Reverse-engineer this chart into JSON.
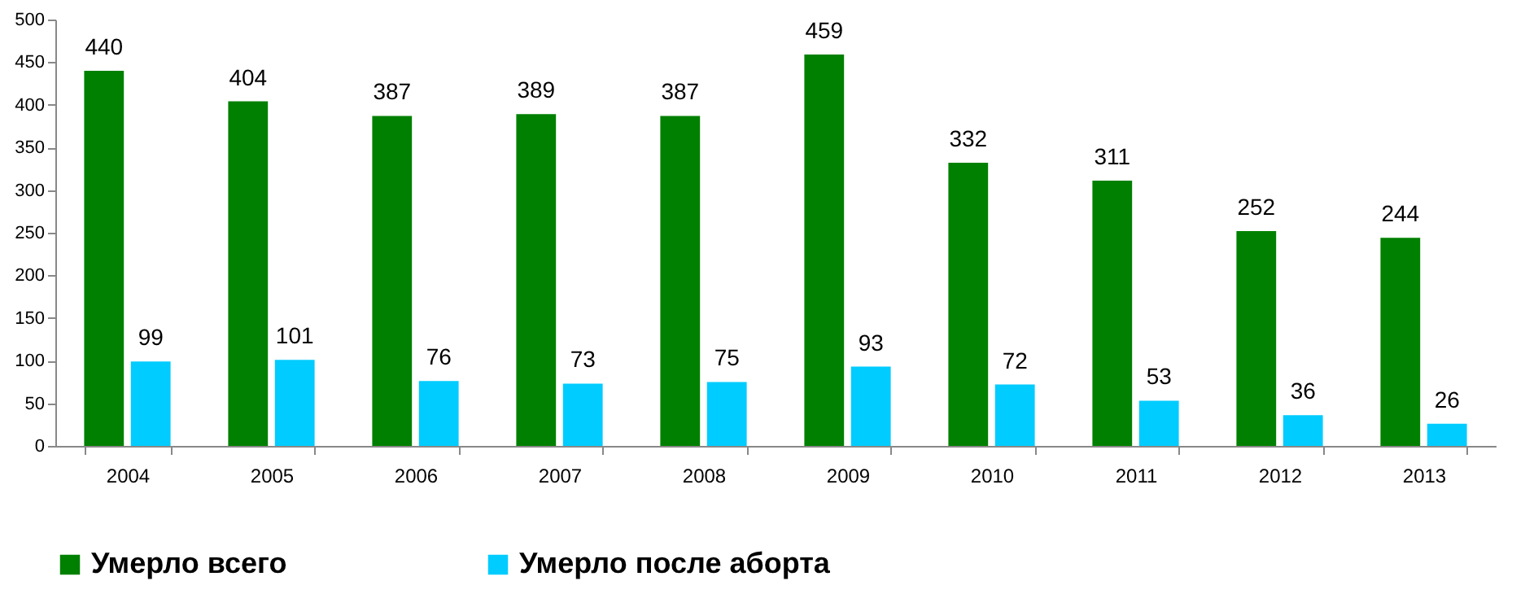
{
  "chart_data": {
    "type": "bar",
    "categories": [
      "2004",
      "2005",
      "2006",
      "2007",
      "2008",
      "2009",
      "2010",
      "2011",
      "2012",
      "2013"
    ],
    "series": [
      {
        "name": "Умерло всего",
        "color": "#008000",
        "values": [
          440,
          404,
          387,
          389,
          387,
          459,
          332,
          311,
          252,
          244
        ]
      },
      {
        "name": "Умерло после аборта",
        "color": "#00ccff",
        "values": [
          99,
          101,
          76,
          73,
          75,
          93,
          72,
          53,
          36,
          26
        ]
      }
    ],
    "ylim": [
      0,
      500
    ],
    "yticks": [
      0,
      50,
      100,
      150,
      200,
      250,
      300,
      350,
      400,
      450,
      500
    ],
    "data_labels": true,
    "legend": "bottom",
    "grid": false
  }
}
